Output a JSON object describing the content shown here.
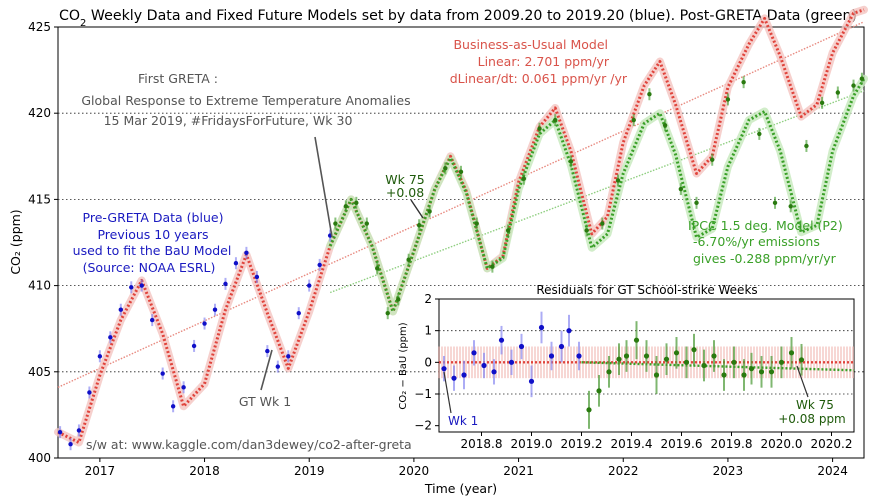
{
  "chart_data": [
    {
      "type": "scatter",
      "title": "CO₂ Weekly Data and Fixed Future Models set by data from 2009.20 to 2019.20 (blue).  Post-GRETA Data (green)",
      "xlabel": "Time (year)",
      "ylabel": "CO₂ (ppm)",
      "xlim": [
        2016.6,
        2024.3
      ],
      "ylim": [
        400,
        425
      ],
      "x_ticks": [
        "2017",
        "2018",
        "2019",
        "2020",
        "2021",
        "2022",
        "2023",
        "2024"
      ],
      "y_ticks": [
        "400",
        "405",
        "410",
        "415",
        "420",
        "425"
      ],
      "grid_y": [
        405,
        410,
        415,
        420
      ],
      "series": [
        {
          "name": "Pre-GRETA weekly data (NOAA ESRL)",
          "color": "#1010c8",
          "x": [
            2016.62,
            2016.72,
            2016.8,
            2016.9,
            2017.0,
            2017.1,
            2017.2,
            2017.3,
            2017.4,
            2017.5,
            2017.6,
            2017.7,
            2017.8,
            2017.9,
            2018.0,
            2018.1,
            2018.2,
            2018.3,
            2018.4,
            2018.5,
            2018.6,
            2018.7,
            2018.8,
            2018.9,
            2019.0,
            2019.1,
            2019.2
          ],
          "y": [
            401.5,
            400.8,
            401.6,
            403.8,
            405.9,
            407.0,
            408.6,
            409.9,
            410.0,
            408.0,
            404.9,
            403.0,
            404.1,
            406.5,
            407.8,
            408.6,
            410.1,
            411.3,
            411.9,
            410.5,
            406.2,
            405.3,
            405.9,
            408.4,
            410.0,
            411.2,
            412.9
          ]
        },
        {
          "name": "Post-GRETA weekly data",
          "color": "#2a7a10",
          "x": [
            2019.25,
            2019.35,
            2019.45,
            2019.55,
            2019.65,
            2019.75,
            2019.85,
            2019.95,
            2020.05,
            2020.15,
            2020.3,
            2020.45,
            2020.6,
            2020.75,
            2020.9,
            2021.05,
            2021.2,
            2021.35,
            2021.5,
            2021.65,
            2021.8,
            2021.95,
            2022.1,
            2022.25,
            2022.4,
            2022.55,
            2022.7,
            2022.85,
            2023.0,
            2023.15,
            2023.3,
            2023.45,
            2023.6,
            2023.75,
            2023.9,
            2024.05,
            2024.2,
            2024.28
          ],
          "y": [
            413.6,
            414.6,
            414.8,
            413.6,
            411.0,
            408.4,
            409.2,
            411.5,
            413.5,
            414.3,
            416.8,
            416.6,
            413.6,
            411.1,
            413.2,
            416.2,
            419.1,
            419.6,
            417.2,
            413.2,
            413.6,
            416.1,
            419.6,
            421.1,
            419.3,
            415.6,
            414.8,
            417.3,
            420.8,
            421.8,
            418.8,
            414.8,
            414.6,
            418.1,
            420.6,
            421.2,
            421.6,
            422.0
          ]
        },
        {
          "name": "Business-as-Usual seasonal model",
          "color": "#e0443c",
          "x": [
            2016.6,
            2016.8,
            2017.0,
            2017.2,
            2017.4,
            2017.6,
            2017.8,
            2018.0,
            2018.2,
            2018.4,
            2018.6,
            2018.8,
            2019.0,
            2019.2,
            2019.4,
            2019.6,
            2019.8,
            2020.0,
            2020.2,
            2020.35,
            2020.5,
            2020.7,
            2020.85,
            2021.0,
            2021.2,
            2021.35,
            2021.5,
            2021.7,
            2021.85,
            2022.0,
            2022.2,
            2022.35,
            2022.5,
            2022.7,
            2022.85,
            2023.0,
            2023.2,
            2023.35,
            2023.5,
            2023.7,
            2023.85,
            2024.0,
            2024.2,
            2024.3
          ],
          "y": [
            401.5,
            400.9,
            404.8,
            408.0,
            410.3,
            407.2,
            403.0,
            404.3,
            408.6,
            411.8,
            408.4,
            405.2,
            408.5,
            412.3,
            415.0,
            412.3,
            408.5,
            412.0,
            415.6,
            417.5,
            415.5,
            411.0,
            411.7,
            416.0,
            419.2,
            420.3,
            417.8,
            413.0,
            414.0,
            418.3,
            421.6,
            423.0,
            420.5,
            416.5,
            417.5,
            421.5,
            424.0,
            425.5,
            423.3,
            419.8,
            420.5,
            423.5,
            425.8,
            426.0
          ]
        },
        {
          "name": "IPCC 1.5 deg. Model (P2) seasonal",
          "color": "#3aa028",
          "x": [
            2019.2,
            2019.4,
            2019.6,
            2019.8,
            2020.0,
            2020.2,
            2020.35,
            2020.5,
            2020.7,
            2020.85,
            2021.0,
            2021.2,
            2021.35,
            2021.5,
            2021.7,
            2021.85,
            2022.0,
            2022.2,
            2022.35,
            2022.5,
            2022.7,
            2022.85,
            2023.0,
            2023.2,
            2023.35,
            2023.5,
            2023.7,
            2023.85,
            2024.0,
            2024.2,
            2024.3
          ],
          "y": [
            412.3,
            415.0,
            412.3,
            408.5,
            412.0,
            415.6,
            417.4,
            415.4,
            411.0,
            411.6,
            415.6,
            418.8,
            419.6,
            417.0,
            412.2,
            413.0,
            416.5,
            419.4,
            420.0,
            417.6,
            412.8,
            413.3,
            416.9,
            419.6,
            420.1,
            417.8,
            413.1,
            413.5,
            417.8,
            421.0,
            422.0
          ]
        },
        {
          "name": "BaU linear trend",
          "color": "#e88a80",
          "x": [
            2016.6,
            2024.3
          ],
          "y": [
            404.1,
            425.3
          ]
        },
        {
          "name": "IPCC linear trend",
          "color": "#8fcf80",
          "x": [
            2019.2,
            2024.3
          ],
          "y": [
            409.6,
            421.3
          ]
        }
      ],
      "annotations": {
        "bau_model": [
          "Business-as-Usual Model",
          "Linear:  2.701 ppm/yr",
          "dLinear/dt:  0.061 ppm/yr /yr"
        ],
        "first_greta": [
          "First GRETA :",
          "Global Response to Extreme Temperature Anomalies",
          "15 Mar 2019, #FridaysForFuture, Wk 30"
        ],
        "pre_greta": [
          "Pre-GRETA Data (blue)",
          "Previous 10 years",
          "used to fit the BaU Model",
          "(Source: NOAA ESRL)"
        ],
        "wk75": [
          "Wk 75",
          "+0.08"
        ],
        "ipcc_model": [
          "IPCC 1.5 deg. Model (P2)",
          "-6.70%/yr emissions",
          "gives -0.288 ppm/yr/yr"
        ],
        "gt_wk1": "GT Wk 1",
        "credit": "s/w at: www.kaggle.com/dan3dewey/co2-after-greta"
      }
    },
    {
      "type": "scatter",
      "title": "Residuals for GT School-strike Weeks",
      "xlabel": "",
      "ylabel": "CO₂ −  BaU (ppm)",
      "xlim": [
        2018.63,
        2020.29
      ],
      "ylim": [
        -2.2,
        2.0
      ],
      "x_ticks": [
        "2018.8",
        "2019.0",
        "2019.2",
        "2019.4",
        "2019.6",
        "2019.8",
        "2020.0",
        "2020.2"
      ],
      "y_ticks": [
        "2",
        "1",
        "0",
        "−1",
        "−2"
      ],
      "grid_y": [
        1,
        0,
        -1
      ],
      "series": [
        {
          "name": "Pre-GRETA residuals",
          "color": "#1010c8",
          "x": [
            2018.65,
            2018.69,
            2018.73,
            2018.77,
            2018.81,
            2018.85,
            2018.88,
            2018.92,
            2018.96,
            2019.0,
            2019.04,
            2019.08,
            2019.12,
            2019.15,
            2019.19
          ],
          "y": [
            -0.2,
            -0.5,
            -0.4,
            0.3,
            -0.1,
            -0.3,
            0.7,
            0.0,
            0.5,
            -0.6,
            1.1,
            0.2,
            0.5,
            1.0,
            0.2
          ],
          "err": [
            0.4,
            0.4,
            0.45,
            0.4,
            0.4,
            0.4,
            0.45,
            0.4,
            0.4,
            0.5,
            0.5,
            0.45,
            0.5,
            0.5,
            0.45
          ]
        },
        {
          "name": "Post-GRETA residuals",
          "color": "#2a7a10",
          "x": [
            2019.23,
            2019.27,
            2019.31,
            2019.35,
            2019.38,
            2019.42,
            2019.46,
            2019.5,
            2019.54,
            2019.58,
            2019.62,
            2019.65,
            2019.69,
            2019.73,
            2019.77,
            2019.81,
            2019.85,
            2019.88,
            2019.92,
            2019.96,
            2020.0,
            2020.04,
            2020.08
          ],
          "y": [
            -1.5,
            -0.9,
            -0.3,
            0.1,
            0.2,
            0.7,
            0.2,
            -0.4,
            0.1,
            0.3,
            0.0,
            0.4,
            -0.1,
            0.2,
            -0.4,
            0.0,
            -0.4,
            -0.2,
            -0.3,
            -0.3,
            0.0,
            0.3,
            0.08
          ],
          "err": [
            0.6,
            0.5,
            0.5,
            0.5,
            0.5,
            0.6,
            0.5,
            0.6,
            0.5,
            0.5,
            0.5,
            0.5,
            0.5,
            0.5,
            0.5,
            0.5,
            0.5,
            0.5,
            0.5,
            0.5,
            0.5,
            0.5,
            0.5
          ]
        },
        {
          "name": "BaU zero line",
          "color": "#e0443c",
          "x": [
            2018.63,
            2020.29
          ],
          "y": [
            0,
            0
          ]
        },
        {
          "name": "IPCC model residual",
          "color": "#3aa028",
          "x": [
            2019.2,
            2020.29
          ],
          "y": [
            0.0,
            -0.25
          ]
        }
      ],
      "annotations": {
        "wk1": "Wk 1",
        "wk75": [
          "Wk 75",
          "+0.08 ppm"
        ]
      }
    }
  ]
}
